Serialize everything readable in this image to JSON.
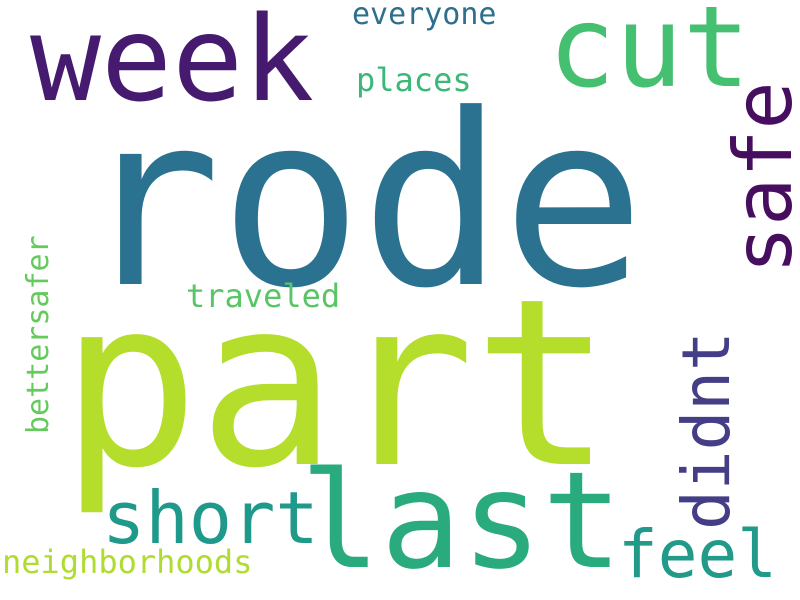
{
  "words": {
    "rode": "rode",
    "part": "part",
    "week": "week",
    "cut": "cut",
    "last": "last",
    "short": "short",
    "feel": "feel",
    "everyone": "everyone",
    "places": "places",
    "traveled": "traveled",
    "neighborhoods": "neighborhoods",
    "safe": "safe",
    "didnt": "didnt",
    "bettersafer": "bettersafer"
  },
  "colors": {
    "background": "#ffffff",
    "rode": "#2b7290",
    "part": "#b4dd2c",
    "week": "#461a6e",
    "cut": "#45bf70",
    "last": "#2aab7e",
    "short": "#1f998a",
    "feel": "#219a8a",
    "everyone": "#2e6f8e",
    "places": "#3bb877",
    "traveled": "#58c566",
    "neighborhoods": "#b0dc31",
    "safe": "#470d5e",
    "didnt": "#433e85",
    "bettersafer": "#65ca5c"
  }
}
